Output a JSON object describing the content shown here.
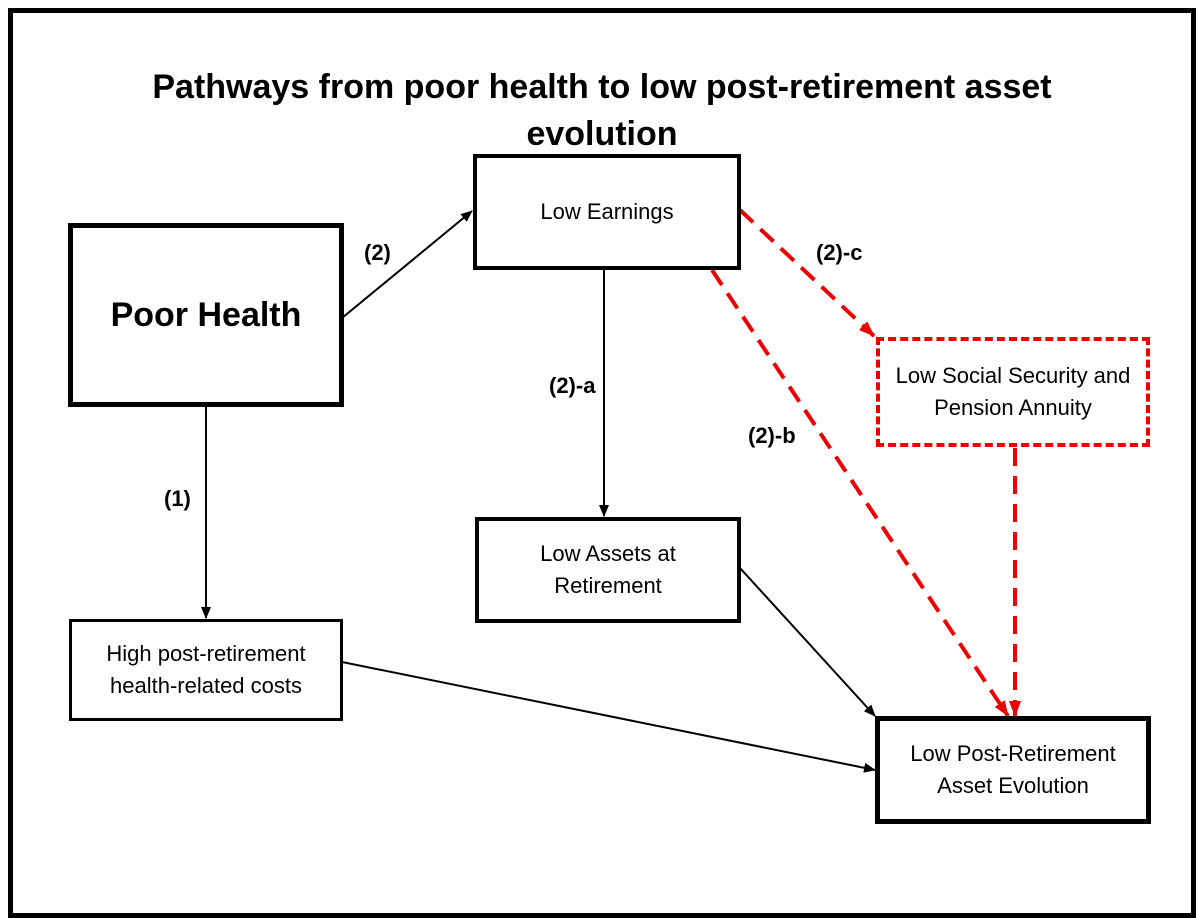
{
  "title": "Pathways from poor health to low post-retirement asset evolution",
  "nodes": [
    {
      "label": "Poor Health"
    },
    {
      "label": "Low Earnings"
    },
    {
      "label": "Low Social Security and Pension Annuity"
    },
    {
      "label": "Low Assets at Retirement"
    },
    {
      "label": "High post-retirement health-related costs"
    },
    {
      "label": "Low Post-Retirement Asset Evolution"
    }
  ],
  "edges": [
    {
      "label": "(2)"
    },
    {
      "label": "(2)-a"
    },
    {
      "label": "(1)"
    },
    {
      "label": "(2)-c"
    },
    {
      "label": "(2)-b"
    }
  ]
}
